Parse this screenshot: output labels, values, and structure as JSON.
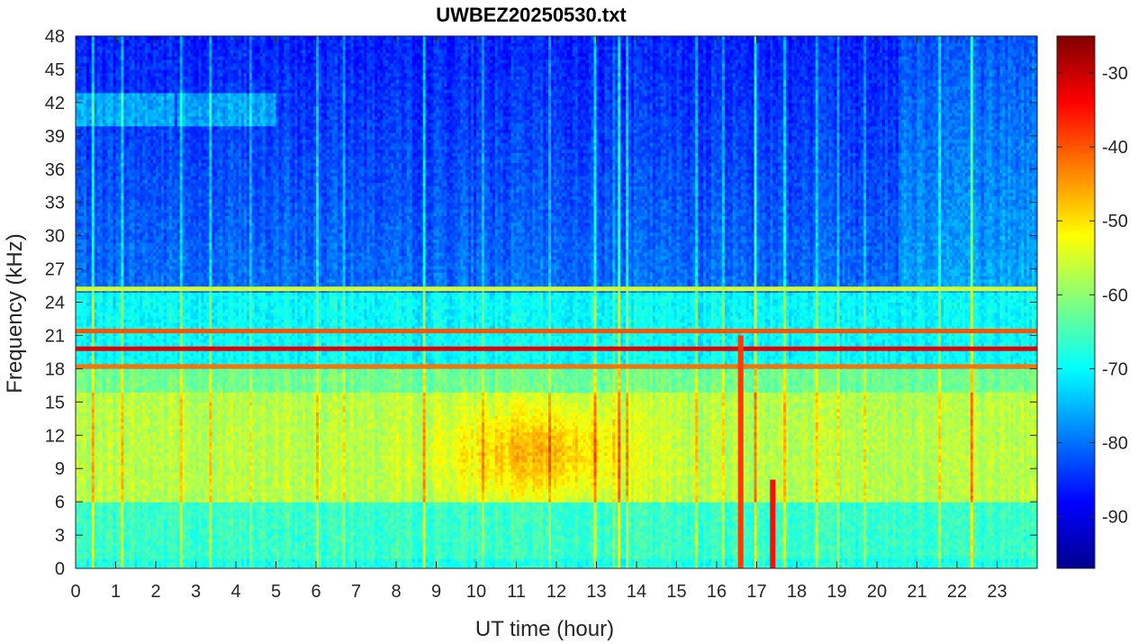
{
  "chart_data": {
    "type": "heatmap",
    "title": "UWBEZ20250530.txt",
    "xlabel": "UT time (hour)",
    "ylabel": "Frequency (kHz)",
    "xlim": [
      0,
      24
    ],
    "ylim": [
      0,
      48
    ],
    "x_ticks": [
      "0",
      "1",
      "2",
      "3",
      "4",
      "5",
      "6",
      "7",
      "8",
      "9",
      "10",
      "11",
      "12",
      "13",
      "14",
      "15",
      "16",
      "17",
      "18",
      "19",
      "20",
      "21",
      "22",
      "23"
    ],
    "y_ticks": [
      "0",
      "3",
      "6",
      "9",
      "12",
      "15",
      "18",
      "21",
      "24",
      "27",
      "30",
      "33",
      "36",
      "39",
      "42",
      "45",
      "48"
    ],
    "colorbar": {
      "range": [
        -97,
        -25
      ],
      "ticks": [
        "-90",
        "-80",
        "-70",
        "-60",
        "-50",
        "-40",
        "-30"
      ],
      "colormap": "jet"
    },
    "features": [
      {
        "label": "strong transmitter line",
        "freq_khz": 19.8,
        "level_db": -32
      },
      {
        "label": "transmitter line",
        "freq_khz": 18.2,
        "level_db": -42
      },
      {
        "label": "transmitter line",
        "freq_khz": 21.4,
        "level_db": -40
      },
      {
        "label": "transmitter line",
        "freq_khz": 25.2,
        "level_db": -55
      },
      {
        "label": "broadband noise band",
        "freq_khz_range": [
          6,
          16
        ],
        "time_h_range": [
          9,
          14
        ],
        "level_db": -47
      },
      {
        "label": "impulsive event",
        "time_h": 16.6,
        "freq_khz_range": [
          0,
          21
        ],
        "level_db": -38
      },
      {
        "label": "impulsive event",
        "time_h": 17.4,
        "freq_khz_range": [
          0,
          8
        ],
        "level_db": -35
      }
    ]
  }
}
